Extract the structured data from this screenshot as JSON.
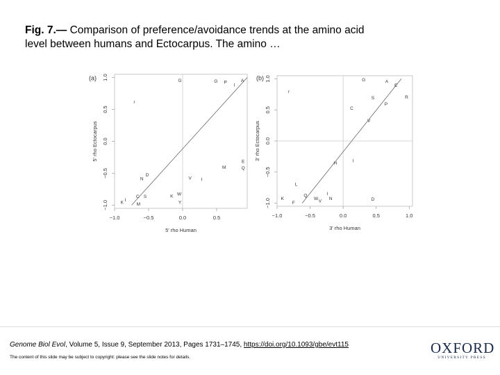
{
  "header": {
    "figure_label": "Fig. 7.—",
    "caption": "Comparison of preference/avoidance trends at the amino acid level between humans and Ectocarpus. The amino …"
  },
  "chart_data": [
    {
      "type": "scatter",
      "panel_label": "(a)",
      "xlabel": "5' rho Human",
      "ylabel": "5' rho Ectocarpus",
      "xlim": [
        -1.0,
        0.95
      ],
      "ylim": [
        -1.05,
        1.05
      ],
      "xticks": [
        {
          "value": -1.0,
          "label": "−1.0"
        },
        {
          "value": -0.5,
          "label": "−0.5"
        },
        {
          "value": 0.0,
          "label": "0.0"
        },
        {
          "value": 0.5,
          "label": "0.5"
        }
      ],
      "yticks": [
        {
          "value": -1.0,
          "label": "−1.0"
        },
        {
          "value": -0.5,
          "label": "−0.5"
        },
        {
          "value": 0.0,
          "label": "0.0"
        },
        {
          "value": 0.5,
          "label": "0.5"
        },
        {
          "value": 1.0,
          "label": "1.0"
        }
      ],
      "vlines": [
        0
      ],
      "hlines": [],
      "labels": [
        "G",
        "G",
        "P",
        "I",
        "A",
        "r",
        "N",
        "D",
        "M",
        "E",
        "Q",
        "V",
        "I",
        "W",
        "K",
        "Y",
        "C",
        "S",
        "M",
        "K",
        "I"
      ],
      "x": [
        -0.04,
        0.49,
        0.63,
        0.76,
        0.88,
        -0.71,
        -0.6,
        -0.52,
        0.61,
        0.89,
        0.89,
        0.11,
        0.28,
        -0.05,
        -0.16,
        -0.04,
        -0.66,
        -0.55,
        -0.65,
        -0.89,
        -0.84
      ],
      "y": [
        0.95,
        0.94,
        0.92,
        0.88,
        0.95,
        0.61,
        -0.59,
        -0.53,
        -0.41,
        -0.32,
        -0.42,
        -0.58,
        -0.6,
        -0.83,
        -0.86,
        -0.96,
        -0.87,
        -0.87,
        -0.99,
        -0.96,
        -0.92
      ],
      "fit_line": {
        "x": [
          -0.75,
          0.95
        ],
        "y": [
          -1.0,
          1.0
        ]
      }
    },
    {
      "type": "scatter",
      "panel_label": "(b)",
      "xlabel": "3' rho Human",
      "ylabel": "3' rho Ectocarpus",
      "xlim": [
        -1.0,
        1.05
      ],
      "ylim": [
        -1.05,
        1.05
      ],
      "xticks": [
        {
          "value": -1.0,
          "label": "−1.0"
        },
        {
          "value": -0.5,
          "label": "−0.5"
        },
        {
          "value": 0.0,
          "label": "0.0"
        },
        {
          "value": 0.5,
          "label": "0.5"
        },
        {
          "value": 1.0,
          "label": "1.0"
        }
      ],
      "yticks": [
        {
          "value": -1.0,
          "label": "−1.0"
        },
        {
          "value": -0.5,
          "label": "−0.5"
        },
        {
          "value": 0.0,
          "label": "0.0"
        },
        {
          "value": 0.5,
          "label": "0.5"
        },
        {
          "value": 1.0,
          "label": "1.0"
        }
      ],
      "vlines": [
        0
      ],
      "hlines": [
        0
      ],
      "labels": [
        "G",
        "A",
        "E",
        "r",
        "S",
        "R",
        "P",
        "C",
        "V",
        "H",
        "I",
        "L",
        "I",
        "K",
        "F",
        "Q",
        "W",
        "V",
        "N",
        "D"
      ],
      "x": [
        0.31,
        0.66,
        0.8,
        -0.82,
        0.45,
        0.96,
        0.65,
        0.13,
        0.39,
        -0.12,
        0.15,
        -0.71,
        -0.24,
        -0.92,
        -0.75,
        -0.57,
        -0.41,
        -0.35,
        -0.19,
        0.45
      ],
      "y": [
        0.98,
        0.95,
        0.89,
        0.79,
        0.69,
        0.7,
        0.59,
        0.52,
        0.32,
        -0.36,
        -0.32,
        -0.7,
        -0.85,
        -0.93,
        -1.0,
        -0.88,
        -0.93,
        -0.97,
        -0.93,
        -0.94
      ],
      "fit_line": {
        "x": [
          -0.62,
          0.88
        ],
        "y": [
          -1.0,
          1.0
        ]
      }
    }
  ],
  "footer": {
    "journal": "Genome Biol Evol",
    "citation": ", Volume 5, Issue 9, September 2013, Pages 1731–1745, ",
    "doi": "https://doi.org/10.1093/gbe/evt115",
    "copyright": "The content of this slide may be subject to copyright: please see the slide notes for details.",
    "logo_main": "OXFORD",
    "logo_sub": "UNIVERSITY PRESS"
  }
}
